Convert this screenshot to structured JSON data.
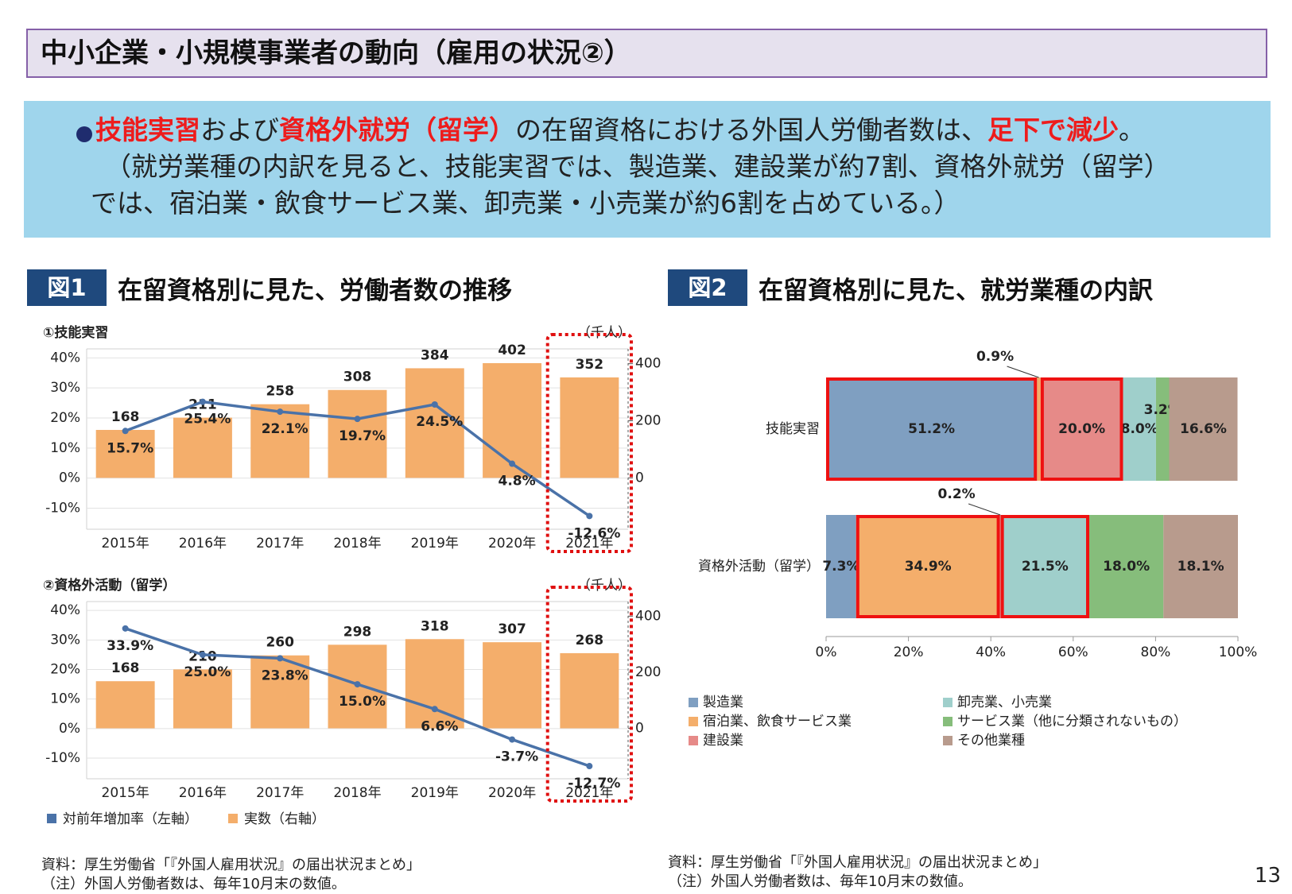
{
  "header": {
    "title": "中小企業・小規模事業者の動向（雇用の状況②）"
  },
  "summary": {
    "parts": [
      {
        "text": "技能実習",
        "emphasis": true
      },
      {
        "text": "および",
        "emphasis": false
      },
      {
        "text": "資格外就労（留学）",
        "emphasis": true
      },
      {
        "text": "の在留資格における外国人労働者数は、",
        "emphasis": false
      },
      {
        "text": "足下で減少",
        "emphasis": true
      },
      {
        "text": "。",
        "emphasis": false
      }
    ],
    "note_lines": [
      "（就労業種の内訳を見ると、技能実習では、製造業、建設業が約7割、資格外就労（留学）",
      "では、宿泊業・飲食サービス業、卸売業・小売業が約6割を占めている。）"
    ]
  },
  "figures": [
    {
      "label": "図1",
      "title": "在留資格別に見た、労働者数の推移"
    },
    {
      "label": "図2",
      "title": "在留資格別に見た、就労業種の内訳"
    }
  ],
  "sources": [
    {
      "source": "資料：厚生労働省「『外国人雇用状況』の届出状況まとめ」",
      "note": "（注）外国人労働者数は、毎年10月末の数値。"
    },
    {
      "source": "資料：厚生労働省「『外国人雇用状況』の届出状況まとめ」",
      "note": "（注）外国人労働者数は、毎年10月末の数値。"
    }
  ],
  "page_number": "13",
  "chart_data": [
    {
      "type": "combo",
      "title": "①技能実習",
      "y2_label": "（千人）",
      "categories": [
        "2015年",
        "2016年",
        "2017年",
        "2018年",
        "2019年",
        "2020年",
        "2021年"
      ],
      "series": [
        {
          "type": "bar",
          "axis": "y2",
          "color": "#f4ae6b",
          "values": [
            168,
            211,
            258,
            308,
            384,
            402,
            352
          ]
        },
        {
          "type": "line",
          "color": "#4a72a8",
          "values": [
            15.7,
            25.4,
            22.1,
            19.7,
            24.5,
            4.8,
            -12.6
          ],
          "value_labels": [
            "15.7%",
            "25.4%",
            "22.1%",
            "19.7%",
            "24.5%",
            "4.8%",
            "-12.6%"
          ]
        }
      ],
      "ylim": [
        -17,
        43
      ],
      "yticks": [
        {
          "value": 40,
          "label": "40%"
        },
        {
          "value": 30,
          "label": "30%"
        },
        {
          "value": 20,
          "label": "20%"
        },
        {
          "value": 10,
          "label": "10%"
        },
        {
          "value": 0,
          "label": "0%"
        },
        {
          "value": -10,
          "label": "-10%"
        }
      ],
      "y2lim": [
        -180,
        452
      ],
      "y2ticks": [
        0,
        200,
        400
      ],
      "grid": true
    },
    {
      "type": "combo",
      "title": "②資格外活動（留学）",
      "y2_label": "（千人）",
      "categories": [
        "2015年",
        "2016年",
        "2017年",
        "2018年",
        "2019年",
        "2020年",
        "2021年"
      ],
      "series": [
        {
          "type": "bar",
          "axis": "y2",
          "name": "実数（右軸）",
          "color": "#f4ae6b",
          "values": [
            168,
            210,
            260,
            298,
            318,
            307,
            268
          ]
        },
        {
          "type": "line",
          "name": "対前年増加率（左軸）",
          "color": "#4a72a8",
          "values": [
            33.9,
            25.0,
            23.8,
            15.0,
            6.6,
            -3.7,
            -12.7
          ],
          "value_labels": [
            "33.9%",
            "25.0%",
            "23.8%",
            "15.0%",
            "6.6%",
            "-3.7%",
            "-12.7%"
          ]
        }
      ],
      "ylim": [
        -17,
        43
      ],
      "yticks": [
        {
          "value": 40,
          "label": "40%"
        },
        {
          "value": 30,
          "label": "30%"
        },
        {
          "value": 20,
          "label": "20%"
        },
        {
          "value": 10,
          "label": "10%"
        },
        {
          "value": 0,
          "label": "0%"
        },
        {
          "value": -10,
          "label": "-10%"
        }
      ],
      "y2lim": [
        -180,
        452
      ],
      "y2ticks": [
        0,
        200,
        400
      ],
      "grid": true
    },
    {
      "type": "stacked-hbar",
      "categories": [
        "技能実習",
        "資格外活動（留学）"
      ],
      "series": [
        {
          "name": "製造業",
          "color": "#7f9fc1",
          "values": [
            51.2,
            7.3
          ],
          "value_labels": [
            "51.2%",
            "7.3%"
          ]
        },
        {
          "name": "宿泊業、飲食サービス業",
          "color": "#f4ae6b",
          "values": [
            0.9,
            34.9
          ],
          "value_labels": [
            "0.9%",
            "34.9%"
          ]
        },
        {
          "name": "建設業",
          "color": "#e68a88",
          "values": [
            20.0,
            0.2
          ],
          "value_labels": [
            "20.0%",
            "0.2%"
          ]
        },
        {
          "name": "卸売業、小売業",
          "color": "#9fcfcb",
          "values": [
            8.0,
            21.5
          ],
          "value_labels": [
            "8.0%",
            "21.5%"
          ]
        },
        {
          "name": "サービス業（他に分類されないもの）",
          "color": "#86bd7b",
          "values": [
            3.2,
            18.0
          ],
          "value_labels": [
            "3.2%",
            "18.0%"
          ]
        },
        {
          "name": "その他業種",
          "color": "#b89b8d",
          "values": [
            16.6,
            18.1
          ],
          "value_labels": [
            "16.6%",
            "18.1%"
          ]
        }
      ],
      "xlim": [
        0,
        100
      ],
      "xticks": [
        {
          "value": 0,
          "label": "0%"
        },
        {
          "value": 20,
          "label": "20%"
        },
        {
          "value": 40,
          "label": "40%"
        },
        {
          "value": 60,
          "label": "60%"
        },
        {
          "value": 80,
          "label": "80%"
        },
        {
          "value": 100,
          "label": "100%"
        }
      ]
    }
  ]
}
